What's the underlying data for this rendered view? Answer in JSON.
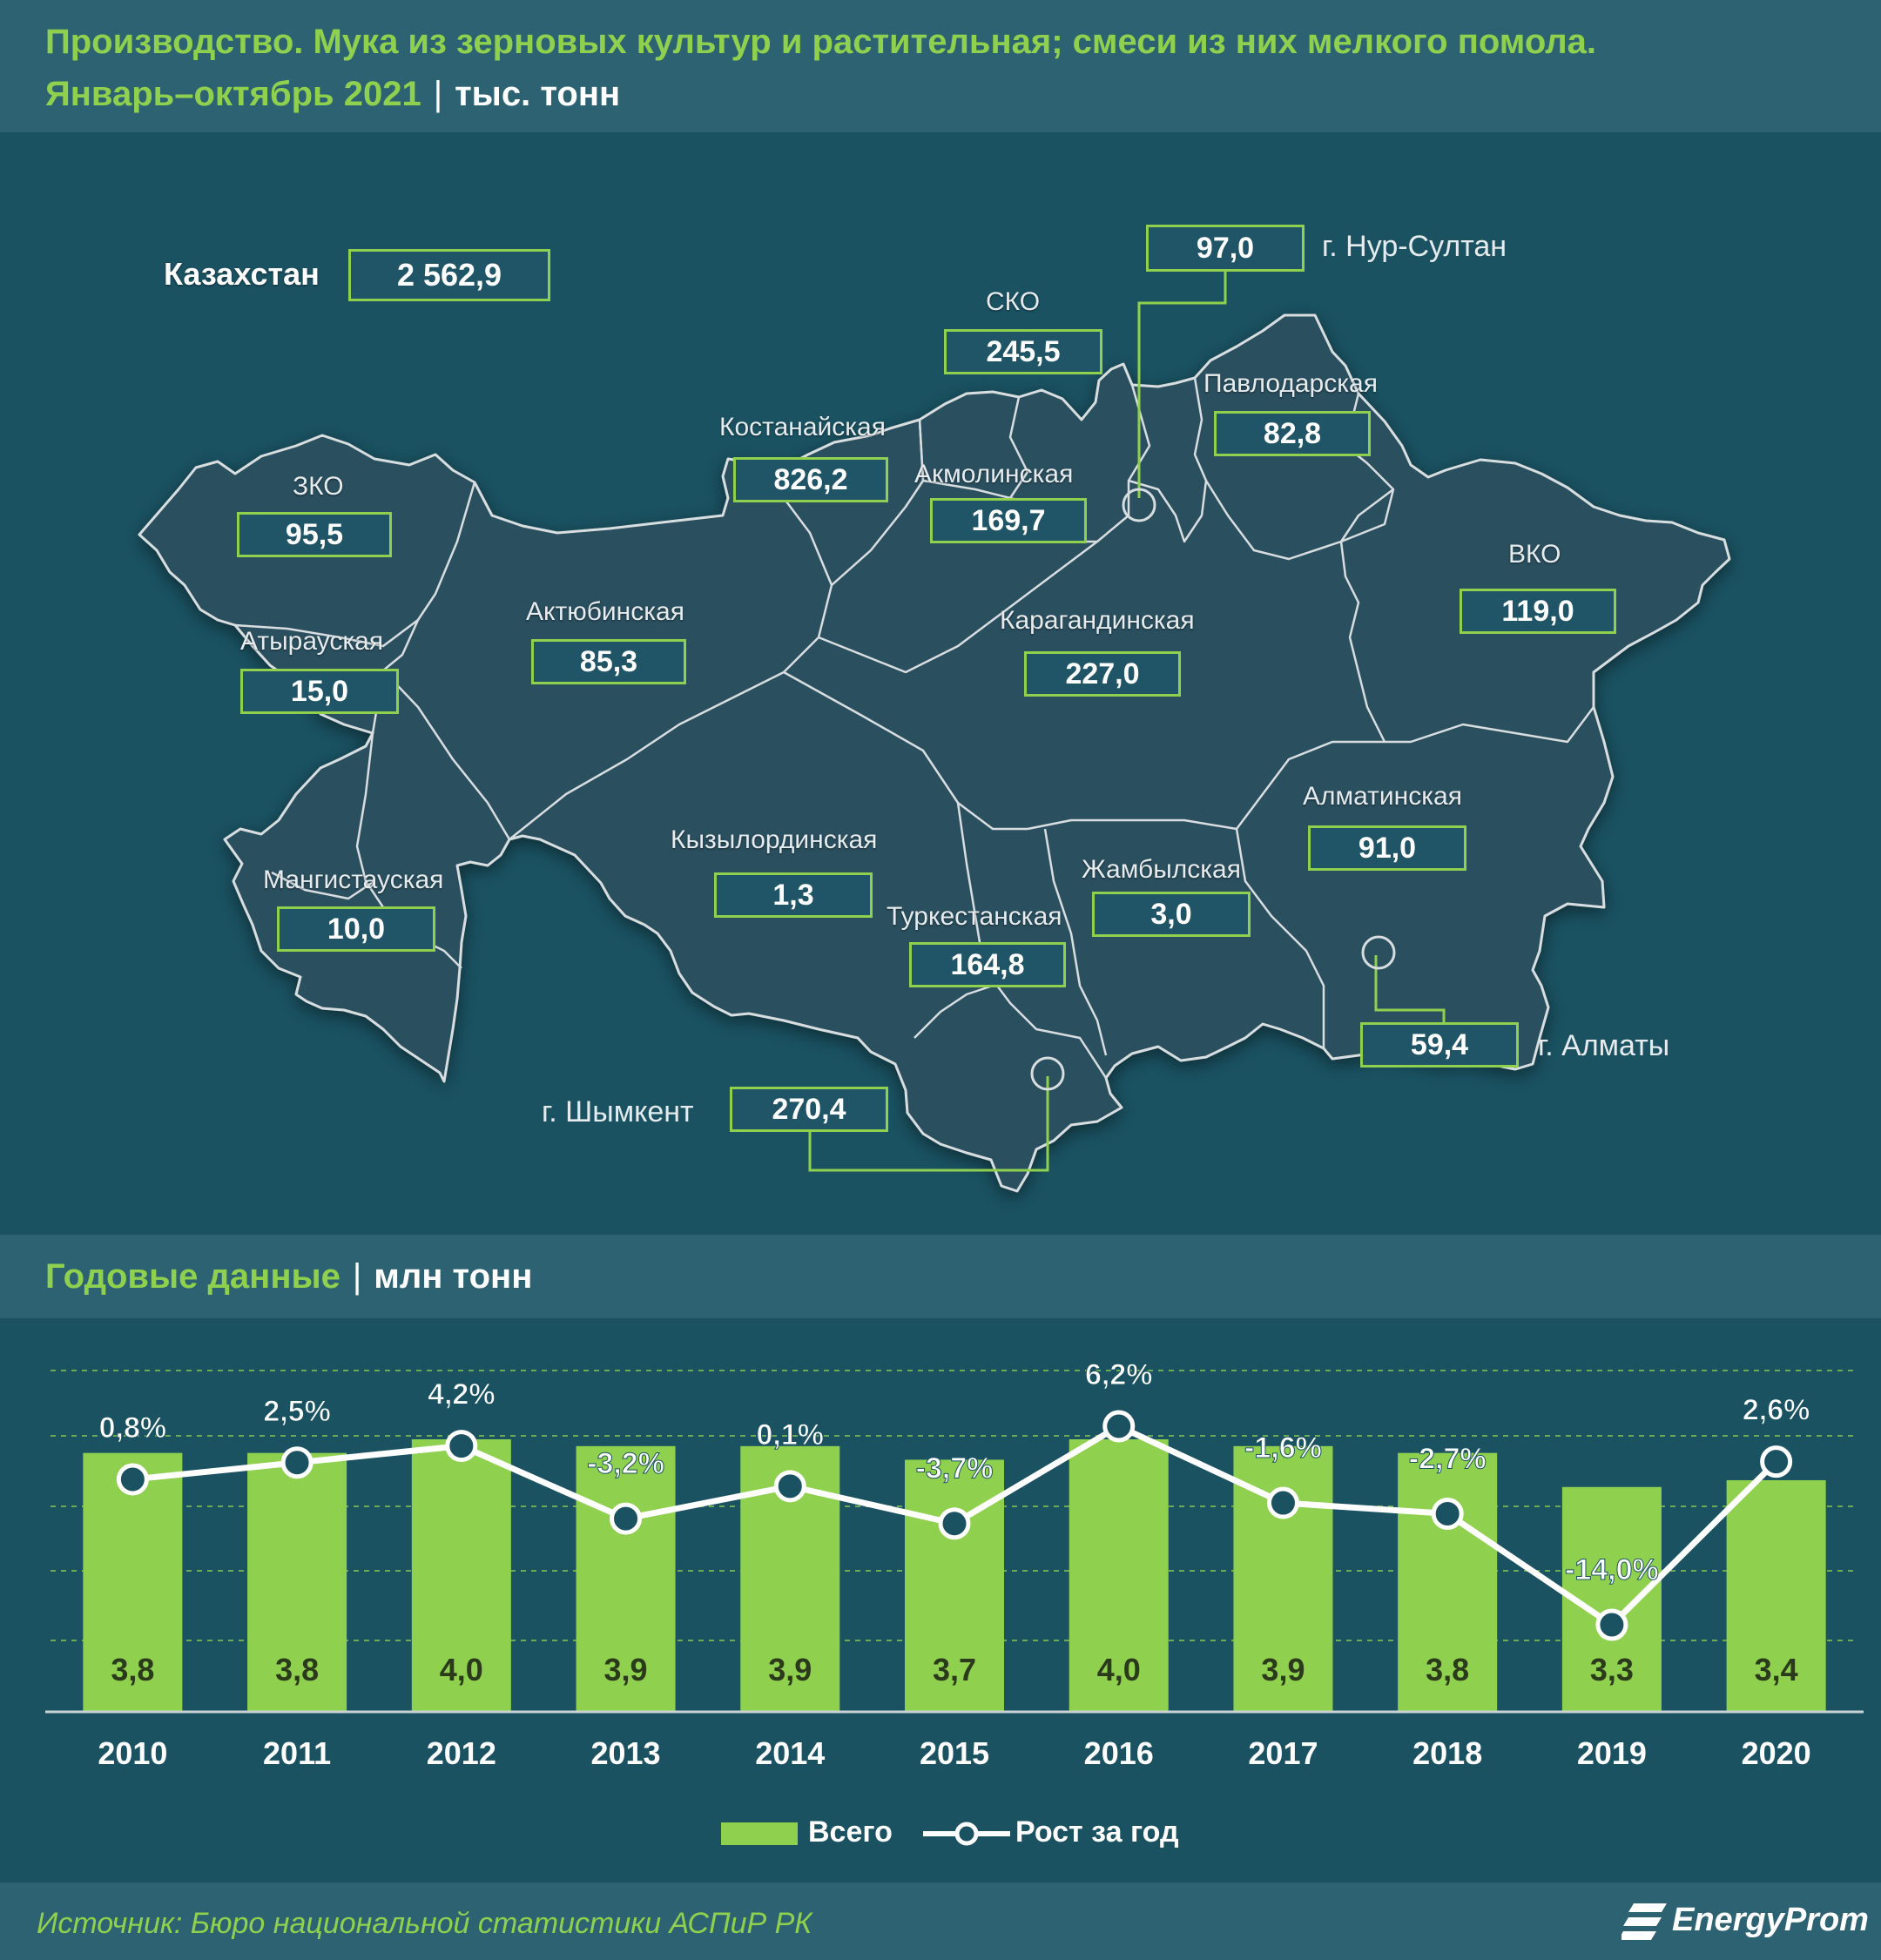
{
  "header": {
    "title": "Производство. Мука из зерновых культур и растительная; смеси из них мелкого помола.",
    "period": "Январь–октябрь 2021",
    "separator": "|",
    "unit": "тыс. тонн"
  },
  "map": {
    "total": {
      "label": "Казахстан",
      "value": "2 562,9"
    },
    "regions": {
      "sko": {
        "label": "СКО",
        "value": "245,5"
      },
      "kostanay": {
        "label": "Костанайская",
        "value": "826,2"
      },
      "akmola": {
        "label": "Акмолинская",
        "value": "169,7"
      },
      "pavlodar": {
        "label": "Павлодарская",
        "value": "82,8"
      },
      "zko": {
        "label": "ЗКО",
        "value": "95,5"
      },
      "atyrau": {
        "label": "Атырауская",
        "value": "15,0"
      },
      "aktobe": {
        "label": "Актюбинская",
        "value": "85,3"
      },
      "karaganda": {
        "label": "Карагандинская",
        "value": "227,0"
      },
      "vko": {
        "label": "ВКО",
        "value": "119,0"
      },
      "almaty_reg": {
        "label": "Алматинская",
        "value": "91,0"
      },
      "kyzylorda": {
        "label": "Кызылординская",
        "value": "1,3"
      },
      "zhambyl": {
        "label": "Жамбылская",
        "value": "3,0"
      },
      "mangystau": {
        "label": "Мангистауская",
        "value": "10,0"
      },
      "turkestan": {
        "label": "Туркестанская",
        "value": "164,8"
      }
    },
    "cities": {
      "nursultan": {
        "label": "г. Нур-Султан",
        "value": "97,0"
      },
      "almaty": {
        "label": "г. Алматы",
        "value": "59,4"
      },
      "shymkent": {
        "label": "г. Шымкент",
        "value": "270,4"
      }
    }
  },
  "annual": {
    "title": "Годовые данные",
    "separator": "|",
    "unit": "млн тонн"
  },
  "chart_data": {
    "type": "bar",
    "categories": [
      "2010",
      "2011",
      "2012",
      "2013",
      "2014",
      "2015",
      "2016",
      "2017",
      "2018",
      "2019",
      "2020"
    ],
    "bar_labels": [
      "3,8",
      "3,8",
      "4,0",
      "3,9",
      "3,9",
      "3,7",
      "4,0",
      "3,9",
      "3,8",
      "3,3",
      "3,4"
    ],
    "growth_labels": [
      "0,8%",
      "2,5%",
      "4,2%",
      "-3,2%",
      "0,1%",
      "-3,7%",
      "6,2%",
      "-1,6%",
      "-2,7%",
      "-14,0%",
      "2,6%"
    ],
    "series": [
      {
        "name": "Всего",
        "type": "bar",
        "values": [
          3.8,
          3.8,
          4.0,
          3.9,
          3.9,
          3.7,
          4.0,
          3.9,
          3.8,
          3.3,
          3.4
        ]
      },
      {
        "name": "Рост за год",
        "type": "line",
        "values": [
          0.8,
          2.5,
          4.2,
          -3.2,
          0.1,
          -3.7,
          6.2,
          -1.6,
          -2.7,
          -14.0,
          2.6
        ]
      }
    ],
    "grid": true,
    "legend_position": "bottom",
    "colors": {
      "bar": "#8fd14f",
      "line": "#ffffff",
      "marker_fill": "#1a5262",
      "grid": "#8fd14f"
    }
  },
  "source": "Источник: Бюро национальной статистики АСПиР РК",
  "logo": {
    "text": "EnergyProm"
  }
}
